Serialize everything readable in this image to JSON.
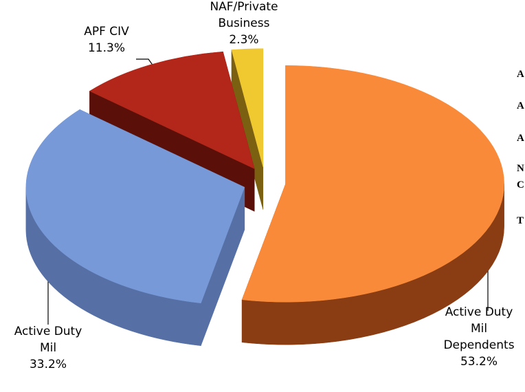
{
  "chart_data": {
    "type": "pie",
    "categories": [
      "Active Duty Mil Dependents",
      "Active Duty Mil",
      "APF CIV",
      "NAF/Private Business"
    ],
    "values": [
      53.2,
      33.2,
      11.3,
      2.3
    ],
    "value_labels": [
      "53.2%",
      "33.2%",
      "11.3%",
      "2.3%"
    ],
    "colors": [
      "#f98a3a",
      "#7799d8",
      "#b3261a",
      "#f0c830"
    ],
    "side_colors": [
      "#8a3c12",
      "#5670a6",
      "#5a1009",
      "#7a6010"
    ]
  },
  "clipped_text": [
    "A",
    "A",
    "A",
    "N",
    "C",
    "T"
  ]
}
